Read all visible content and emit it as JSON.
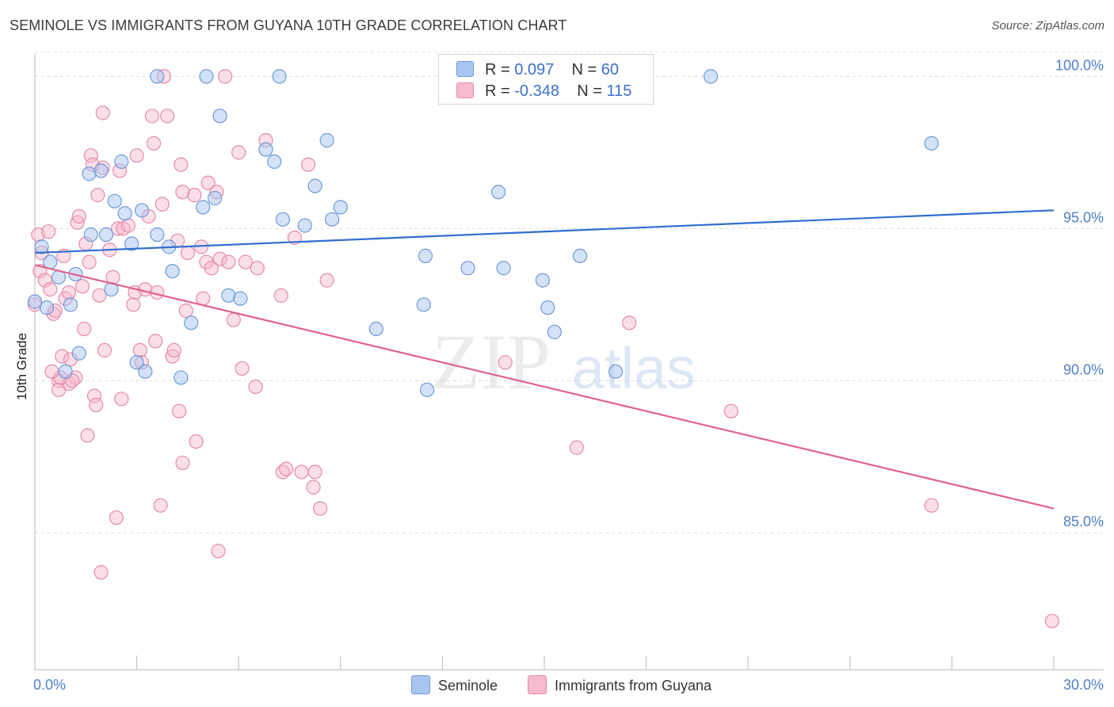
{
  "chart_data": {
    "type": "scatter",
    "title": "SEMINOLE VS IMMIGRANTS FROM GUYANA 10TH GRADE CORRELATION CHART",
    "source": "Source: ZipAtlas.com",
    "watermark": {
      "zip": "ZIP",
      "atlas": "atlas"
    },
    "xlabel": "",
    "ylabel": "10th Grade",
    "xlim": [
      0,
      30
    ],
    "ylim": [
      80.5,
      101
    ],
    "x_tick_labels": [
      "0.0%",
      "30.0%"
    ],
    "y_ticks": [
      85,
      90,
      95,
      100
    ],
    "y_tick_labels": [
      "85.0%",
      "90.0%",
      "95.0%",
      "100.0%"
    ],
    "legend": [
      {
        "label": "R = ",
        "r_value": "0.097",
        "n_label": "N = ",
        "n_value": "60"
      },
      {
        "label": "R = ",
        "r_value": "-0.348",
        "n_label": "N = ",
        "n_value": "115"
      }
    ],
    "colors": {
      "seminole_fill": "#a9c6f0",
      "seminole_stroke": "#6f9ad8",
      "seminole_line": "#2f6fd0",
      "guyana_fill": "#f6b9cd",
      "guyana_stroke": "#e58aab",
      "guyana_line": "#e0628f"
    },
    "series": [
      {
        "name": "Seminole",
        "trend": [
          [
            0,
            94.2
          ],
          [
            30,
            95.6
          ]
        ],
        "points": [
          [
            0.0,
            92.6
          ],
          [
            0.2,
            94.4
          ],
          [
            0.35,
            92.4
          ],
          [
            0.45,
            93.9
          ],
          [
            0.7,
            93.4
          ],
          [
            0.9,
            90.3
          ],
          [
            1.05,
            92.5
          ],
          [
            1.2,
            93.5
          ],
          [
            1.3,
            90.9
          ],
          [
            1.6,
            96.8
          ],
          [
            1.65,
            94.8
          ],
          [
            1.95,
            96.9
          ],
          [
            2.1,
            94.8
          ],
          [
            2.25,
            93.0
          ],
          [
            2.35,
            95.9
          ],
          [
            2.55,
            97.2
          ],
          [
            2.65,
            95.5
          ],
          [
            2.85,
            94.5
          ],
          [
            3.0,
            90.6
          ],
          [
            3.15,
            95.6
          ],
          [
            3.25,
            90.3
          ],
          [
            3.6,
            100.0
          ],
          [
            3.6,
            94.8
          ],
          [
            3.95,
            94.4
          ],
          [
            4.05,
            93.6
          ],
          [
            4.3,
            90.1
          ],
          [
            4.6,
            91.9
          ],
          [
            4.95,
            95.7
          ],
          [
            5.05,
            100.0
          ],
          [
            5.3,
            96.0
          ],
          [
            5.45,
            98.7
          ],
          [
            5.7,
            92.8
          ],
          [
            6.05,
            92.7
          ],
          [
            6.8,
            97.6
          ],
          [
            7.05,
            97.2
          ],
          [
            7.2,
            100.0
          ],
          [
            7.3,
            95.3
          ],
          [
            7.95,
            95.1
          ],
          [
            8.25,
            96.4
          ],
          [
            8.6,
            97.9
          ],
          [
            8.75,
            95.3
          ],
          [
            9.0,
            95.7
          ],
          [
            10.05,
            91.7
          ],
          [
            11.45,
            92.5
          ],
          [
            11.5,
            94.1
          ],
          [
            11.55,
            89.7
          ],
          [
            12.75,
            93.7
          ],
          [
            13.65,
            96.2
          ],
          [
            13.8,
            93.7
          ],
          [
            14.95,
            93.3
          ],
          [
            15.1,
            92.4
          ],
          [
            15.3,
            91.6
          ],
          [
            16.05,
            94.1
          ],
          [
            17.1,
            90.3
          ],
          [
            19.9,
            100.0
          ],
          [
            26.4,
            97.8
          ]
        ]
      },
      {
        "name": "Immigrants from Guyana",
        "trend": [
          [
            0,
            93.8
          ],
          [
            30,
            85.8
          ]
        ],
        "points": [
          [
            0.0,
            92.5
          ],
          [
            0.1,
            94.8
          ],
          [
            0.15,
            93.6
          ],
          [
            0.2,
            94.2
          ],
          [
            0.3,
            93.3
          ],
          [
            0.4,
            94.9
          ],
          [
            0.45,
            93.0
          ],
          [
            0.55,
            92.2
          ],
          [
            0.6,
            92.3
          ],
          [
            0.7,
            90.0
          ],
          [
            0.7,
            89.7
          ],
          [
            0.8,
            90.8
          ],
          [
            0.85,
            94.1
          ],
          [
            0.9,
            92.7
          ],
          [
            1.0,
            89.9
          ],
          [
            1.0,
            92.9
          ],
          [
            1.05,
            90.7
          ],
          [
            1.2,
            90.1
          ],
          [
            1.25,
            95.2
          ],
          [
            1.3,
            95.4
          ],
          [
            1.4,
            93.1
          ],
          [
            1.45,
            91.7
          ],
          [
            1.5,
            94.5
          ],
          [
            1.55,
            88.2
          ],
          [
            1.6,
            93.9
          ],
          [
            1.65,
            97.4
          ],
          [
            1.7,
            97.1
          ],
          [
            1.75,
            89.5
          ],
          [
            1.8,
            89.2
          ],
          [
            1.85,
            96.1
          ],
          [
            1.9,
            92.8
          ],
          [
            2.0,
            97.0
          ],
          [
            2.0,
            98.8
          ],
          [
            2.05,
            91.0
          ],
          [
            2.2,
            94.3
          ],
          [
            2.3,
            93.4
          ],
          [
            2.4,
            85.5
          ],
          [
            2.45,
            95.0
          ],
          [
            2.5,
            96.9
          ],
          [
            2.55,
            89.4
          ],
          [
            2.6,
            95.0
          ],
          [
            2.75,
            95.1
          ],
          [
            2.9,
            92.5
          ],
          [
            2.95,
            92.9
          ],
          [
            3.0,
            97.4
          ],
          [
            3.1,
            91.0
          ],
          [
            3.15,
            90.6
          ],
          [
            3.25,
            93.0
          ],
          [
            3.35,
            95.4
          ],
          [
            3.45,
            98.7
          ],
          [
            3.5,
            97.8
          ],
          [
            3.55,
            91.3
          ],
          [
            3.6,
            92.9
          ],
          [
            3.7,
            85.9
          ],
          [
            3.75,
            95.8
          ],
          [
            3.8,
            100.0
          ],
          [
            3.9,
            98.7
          ],
          [
            4.05,
            90.8
          ],
          [
            4.1,
            91.0
          ],
          [
            4.2,
            94.6
          ],
          [
            4.25,
            89.0
          ],
          [
            4.3,
            97.1
          ],
          [
            4.35,
            96.2
          ],
          [
            4.35,
            87.3
          ],
          [
            4.45,
            92.3
          ],
          [
            4.5,
            94.2
          ],
          [
            4.7,
            96.1
          ],
          [
            4.75,
            88.0
          ],
          [
            4.9,
            94.4
          ],
          [
            4.95,
            92.7
          ],
          [
            5.05,
            93.9
          ],
          [
            5.1,
            96.5
          ],
          [
            5.2,
            93.7
          ],
          [
            5.35,
            96.2
          ],
          [
            5.4,
            84.4
          ],
          [
            5.45,
            94.0
          ],
          [
            5.6,
            100.0
          ],
          [
            5.7,
            93.9
          ],
          [
            5.85,
            92.0
          ],
          [
            6.0,
            97.5
          ],
          [
            6.1,
            90.4
          ],
          [
            6.2,
            93.9
          ],
          [
            6.5,
            89.8
          ],
          [
            6.55,
            93.7
          ],
          [
            6.8,
            97.9
          ],
          [
            7.25,
            92.8
          ],
          [
            7.3,
            87.0
          ],
          [
            7.4,
            87.1
          ],
          [
            7.65,
            94.7
          ],
          [
            7.85,
            87.0
          ],
          [
            8.05,
            97.1
          ],
          [
            8.2,
            86.5
          ],
          [
            8.25,
            87.0
          ],
          [
            8.4,
            85.8
          ],
          [
            8.6,
            93.3
          ],
          [
            13.85,
            90.6
          ],
          [
            15.95,
            87.8
          ],
          [
            17.5,
            91.9
          ],
          [
            20.5,
            89.0
          ],
          [
            26.4,
            85.9
          ],
          [
            29.95,
            82.1
          ],
          [
            1.95,
            83.7
          ],
          [
            0.75,
            90.1
          ],
          [
            1.1,
            90.0
          ],
          [
            0.5,
            90.3
          ]
        ]
      }
    ]
  },
  "bottom_legend": [
    {
      "label": "Seminole"
    },
    {
      "label": "Immigrants from Guyana"
    }
  ]
}
